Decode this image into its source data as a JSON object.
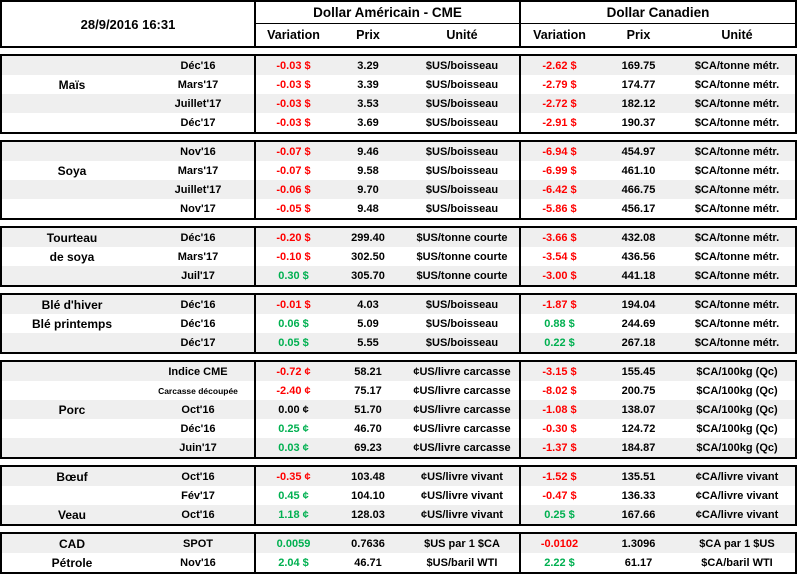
{
  "timestamp": "28/9/2016 16:31",
  "header": {
    "us_group": "Dollar Américain - CME",
    "ca_group": "Dollar Canadien",
    "columns": [
      "Variation",
      "Prix",
      "Unité"
    ]
  },
  "colors": {
    "negative": "#ff0000",
    "positive": "#00b050",
    "neutral": "#000000"
  },
  "sections": [
    {
      "rows": [
        {
          "cat": "",
          "month": "Déc'16",
          "usVar": "-0.03 $",
          "usPrix": "3.29",
          "usUnit": "$US/boisseau",
          "caVar": "-2.62 $",
          "caPrix": "169.75",
          "caUnit": "$CA/tonne métr."
        },
        {
          "cat": "Maïs",
          "month": "Mars'17",
          "usVar": "-0.03 $",
          "usPrix": "3.39",
          "usUnit": "$US/boisseau",
          "caVar": "-2.79 $",
          "caPrix": "174.77",
          "caUnit": "$CA/tonne métr."
        },
        {
          "cat": "",
          "month": "Juillet'17",
          "usVar": "-0.03 $",
          "usPrix": "3.53",
          "usUnit": "$US/boisseau",
          "caVar": "-2.72 $",
          "caPrix": "182.12",
          "caUnit": "$CA/tonne métr."
        },
        {
          "cat": "",
          "month": "Déc'17",
          "usVar": "-0.03 $",
          "usPrix": "3.69",
          "usUnit": "$US/boisseau",
          "caVar": "-2.91 $",
          "caPrix": "190.37",
          "caUnit": "$CA/tonne métr."
        }
      ]
    },
    {
      "rows": [
        {
          "cat": "",
          "month": "Nov'16",
          "usVar": "-0.07 $",
          "usPrix": "9.46",
          "usUnit": "$US/boisseau",
          "caVar": "-6.94 $",
          "caPrix": "454.97",
          "caUnit": "$CA/tonne métr."
        },
        {
          "cat": "Soya",
          "month": "Mars'17",
          "usVar": "-0.07 $",
          "usPrix": "9.58",
          "usUnit": "$US/boisseau",
          "caVar": "-6.99 $",
          "caPrix": "461.10",
          "caUnit": "$CA/tonne métr."
        },
        {
          "cat": "",
          "month": "Juillet'17",
          "usVar": "-0.06 $",
          "usPrix": "9.70",
          "usUnit": "$US/boisseau",
          "caVar": "-6.42 $",
          "caPrix": "466.75",
          "caUnit": "$CA/tonne métr."
        },
        {
          "cat": "",
          "month": "Nov'17",
          "usVar": "-0.05 $",
          "usPrix": "9.48",
          "usUnit": "$US/boisseau",
          "caVar": "-5.86 $",
          "caPrix": "456.17",
          "caUnit": "$CA/tonne métr."
        }
      ]
    },
    {
      "rows": [
        {
          "cat": "Tourteau",
          "month": "Déc'16",
          "usVar": "-0.20 $",
          "usPrix": "299.40",
          "usUnit": "$US/tonne courte",
          "caVar": "-3.66 $",
          "caPrix": "432.08",
          "caUnit": "$CA/tonne métr."
        },
        {
          "cat": "de soya",
          "month": "Mars'17",
          "usVar": "-0.10 $",
          "usPrix": "302.50",
          "usUnit": "$US/tonne courte",
          "caVar": "-3.54 $",
          "caPrix": "436.56",
          "caUnit": "$CA/tonne métr."
        },
        {
          "cat": "",
          "month": "Juil'17",
          "usVar": "0.30 $",
          "usPrix": "305.70",
          "usUnit": "$US/tonne courte",
          "caVar": "-3.00 $",
          "caPrix": "441.18",
          "caUnit": "$CA/tonne métr."
        }
      ]
    },
    {
      "rows": [
        {
          "cat": "Blé d'hiver",
          "month": "Déc'16",
          "usVar": "-0.01 $",
          "usPrix": "4.03",
          "usUnit": "$US/boisseau",
          "caVar": "-1.87 $",
          "caPrix": "194.04",
          "caUnit": "$CA/tonne métr."
        },
        {
          "cat": "Blé printemps",
          "month": "Déc'16",
          "usVar": "0.06 $",
          "usPrix": "5.09",
          "usUnit": "$US/boisseau",
          "caVar": "0.88 $",
          "caPrix": "244.69",
          "caUnit": "$CA/tonne métr."
        },
        {
          "cat": "",
          "month": "Déc'17",
          "usVar": "0.05 $",
          "usPrix": "5.55",
          "usUnit": "$US/boisseau",
          "caVar": "0.22 $",
          "caPrix": "267.18",
          "caUnit": "$CA/tonne métr."
        }
      ]
    },
    {
      "rows": [
        {
          "cat": "",
          "month": "Indice CME",
          "usVar": "-0.72 ¢",
          "usPrix": "58.21",
          "usUnit": "¢US/livre carcasse",
          "caVar": "-3.15 $",
          "caPrix": "155.45",
          "caUnit": "$CA/100kg (Qc)"
        },
        {
          "cat": "",
          "month": "Carcasse découpée",
          "usVar": "-2.40 ¢",
          "usPrix": "75.17",
          "usUnit": "¢US/livre carcasse",
          "caVar": "-8.02 $",
          "caPrix": "200.75",
          "caUnit": "$CA/100kg (Qc)"
        },
        {
          "cat": "Porc",
          "month": "Oct'16",
          "usVar": "0.00 ¢",
          "usPrix": "51.70",
          "usUnit": "¢US/livre carcasse",
          "caVar": "-1.08 $",
          "caPrix": "138.07",
          "caUnit": "$CA/100kg (Qc)"
        },
        {
          "cat": "",
          "month": "Déc'16",
          "usVar": "0.25 ¢",
          "usPrix": "46.70",
          "usUnit": "¢US/livre carcasse",
          "caVar": "-0.30 $",
          "caPrix": "124.72",
          "caUnit": "$CA/100kg (Qc)"
        },
        {
          "cat": "",
          "month": "Juin'17",
          "usVar": "0.03 ¢",
          "usPrix": "69.23",
          "usUnit": "¢US/livre carcasse",
          "caVar": "-1.37 $",
          "caPrix": "184.87",
          "caUnit": "$CA/100kg (Qc)"
        }
      ]
    },
    {
      "rows": [
        {
          "cat": "Bœuf",
          "month": "Oct'16",
          "usVar": "-0.35 ¢",
          "usPrix": "103.48",
          "usUnit": "¢US/livre vivant",
          "caVar": "-1.52 $",
          "caPrix": "135.51",
          "caUnit": "¢CA/livre vivant"
        },
        {
          "cat": "",
          "month": "Fév'17",
          "usVar": "0.45 ¢",
          "usPrix": "104.10",
          "usUnit": "¢US/livre vivant",
          "caVar": "-0.47 $",
          "caPrix": "136.33",
          "caUnit": "¢CA/livre vivant"
        },
        {
          "cat": "Veau",
          "month": "Oct'16",
          "usVar": "1.18 ¢",
          "usPrix": "128.03",
          "usUnit": "¢US/livre vivant",
          "caVar": "0.25 $",
          "caPrix": "167.66",
          "caUnit": "¢CA/livre vivant"
        }
      ]
    },
    {
      "rows": [
        {
          "cat": "CAD",
          "month": "SPOT",
          "usVar": "0.0059",
          "usPrix": "0.7636",
          "usUnit": "$US par 1 $CA",
          "caVar": "-0.0102",
          "caPrix": "1.3096",
          "caUnit": "$CA par 1 $US"
        },
        {
          "cat": "Pétrole",
          "month": "Nov'16",
          "usVar": "2.04 $",
          "usPrix": "46.71",
          "usUnit": "$US/baril WTI",
          "caVar": "2.22 $",
          "caPrix": "61.17",
          "caUnit": "$CA/baril WTI"
        }
      ]
    }
  ]
}
